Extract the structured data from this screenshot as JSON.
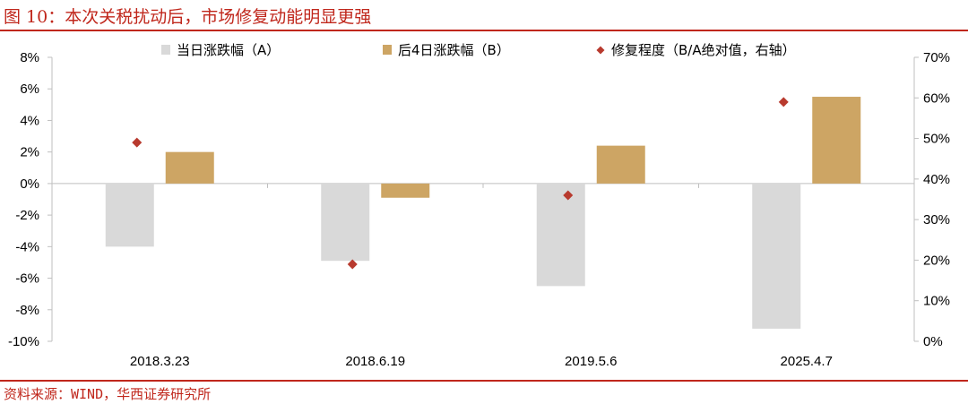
{
  "figure": {
    "title": "图 10：本次关税扰动后，市场修复动能明显更强",
    "source": "资料来源：WIND，华西证券研究所"
  },
  "colors": {
    "accent": "#c0271c",
    "series_a": "#d9d9d9",
    "series_b": "#cda564",
    "series_c": "#b83a2e",
    "axis": "#bfbfbf"
  },
  "chart_data": {
    "type": "bar",
    "categories": [
      "2018.3.23",
      "2018.6.19",
      "2019.5.6",
      "2025.4.7"
    ],
    "series": [
      {
        "name": "当日涨跌幅（A）",
        "type": "bar",
        "axis": "left",
        "values": [
          -4.0,
          -4.9,
          -6.5,
          -9.2
        ]
      },
      {
        "name": "后4日涨跌幅（B）",
        "type": "bar",
        "axis": "left",
        "values": [
          2.0,
          -0.9,
          2.4,
          5.5
        ]
      },
      {
        "name": "修复程度（B/A绝对值，右轴）",
        "type": "scatter",
        "axis": "right",
        "values": [
          49,
          19,
          36,
          59
        ]
      }
    ],
    "y_left": {
      "min": -10,
      "max": 8,
      "step": 2,
      "format": "%"
    },
    "y_right": {
      "min": 0,
      "max": 70,
      "step": 10,
      "format": "%"
    },
    "legend_position": "top",
    "grid": false
  }
}
